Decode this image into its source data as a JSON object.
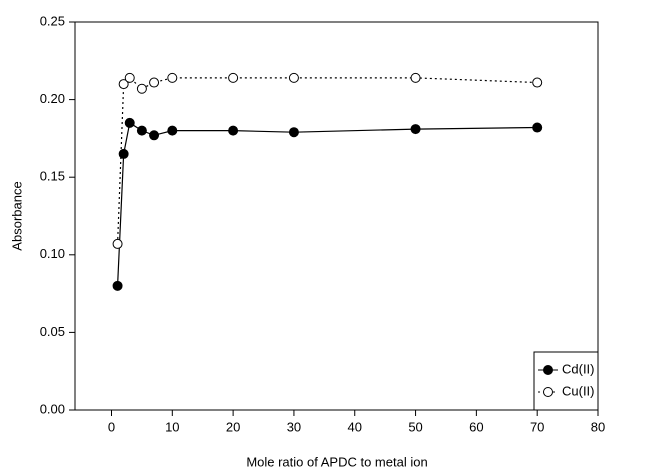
{
  "chart_data": {
    "type": "line",
    "x_label": "Mole ratio of APDC to metal ion",
    "y_label": "Absorbance",
    "xlim": [
      -6,
      80
    ],
    "xticks": [
      0,
      10,
      20,
      30,
      40,
      50,
      60,
      70,
      80
    ],
    "ylim": [
      0,
      0.25
    ],
    "yticks": [
      {
        "value": 0,
        "label": "0.00"
      },
      {
        "value": 0.05,
        "label": "0.05"
      },
      {
        "value": 0.1,
        "label": "0.10"
      },
      {
        "value": 0.15,
        "label": "0.15"
      },
      {
        "value": 0.2,
        "label": "0.20"
      },
      {
        "value": 0.25,
        "label": "0.25"
      }
    ],
    "legend_position": "lower right",
    "series": [
      {
        "name": "Cd(II)",
        "color": "#000000",
        "marker_fill": "#000000",
        "line_style": "solid",
        "x": [
          1,
          2,
          3,
          5,
          7,
          10,
          20,
          30,
          50,
          70
        ],
        "values": [
          0.08,
          0.165,
          0.185,
          0.18,
          0.177,
          0.18,
          0.18,
          0.179,
          0.181,
          0.182
        ]
      },
      {
        "name": "Cu(II)",
        "color": "#000000",
        "marker_fill": "#ffffff",
        "line_style": "dotted",
        "x": [
          1,
          2,
          3,
          5,
          7,
          10,
          20,
          30,
          50,
          70
        ],
        "values": [
          0.107,
          0.21,
          0.214,
          0.207,
          0.211,
          0.214,
          0.214,
          0.214,
          0.214,
          0.211
        ]
      }
    ]
  }
}
